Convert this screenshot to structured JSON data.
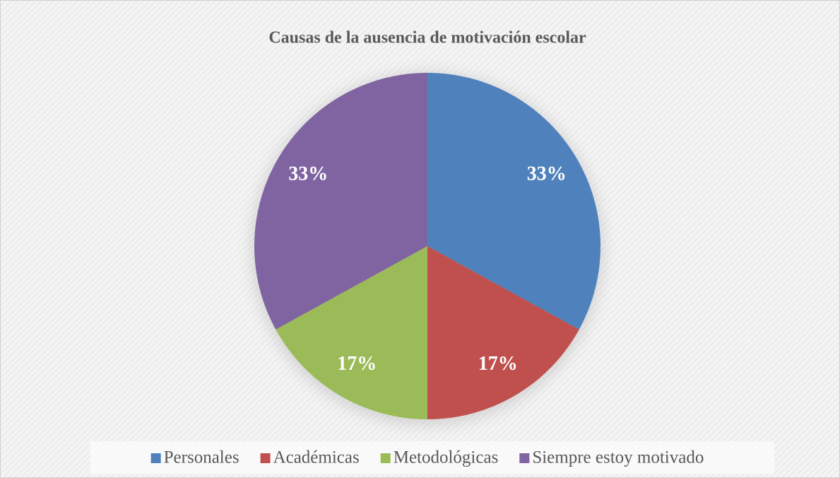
{
  "chart_data": {
    "type": "pie",
    "title": "Causas de la ausencia de motivación escolar",
    "categories": [
      "Personales",
      "Académicas",
      "Metodológicas",
      "Siempre estoy motivado"
    ],
    "values": [
      33,
      17,
      17,
      33
    ],
    "value_labels": [
      "33%",
      "17%",
      "17%",
      "33%"
    ],
    "colors": [
      "#4f81bd",
      "#c0504d",
      "#9bbb59",
      "#8064a2"
    ],
    "legend": "bottom"
  }
}
